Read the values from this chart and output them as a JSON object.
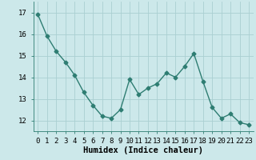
{
  "x": [
    0,
    1,
    2,
    3,
    4,
    5,
    6,
    7,
    8,
    9,
    10,
    11,
    12,
    13,
    14,
    15,
    16,
    17,
    18,
    19,
    20,
    21,
    22,
    23
  ],
  "y": [
    16.9,
    15.9,
    15.2,
    14.7,
    14.1,
    13.3,
    12.7,
    12.2,
    12.1,
    12.5,
    13.9,
    13.2,
    13.5,
    13.7,
    14.2,
    14.0,
    14.5,
    15.1,
    13.8,
    12.6,
    12.1,
    12.3,
    11.9,
    11.8
  ],
  "line_color": "#2e7d72",
  "marker": "D",
  "marker_size": 2.5,
  "bg_color": "#cce8ea",
  "grid_color": "#aacfd2",
  "xlabel": "Humidex (Indice chaleur)",
  "xlim": [
    -0.5,
    23.5
  ],
  "ylim": [
    11.5,
    17.5
  ],
  "yticks": [
    12,
    13,
    14,
    15,
    16,
    17
  ],
  "xticks": [
    0,
    1,
    2,
    3,
    4,
    5,
    6,
    7,
    8,
    9,
    10,
    11,
    12,
    13,
    14,
    15,
    16,
    17,
    18,
    19,
    20,
    21,
    22,
    23
  ],
  "xlabel_fontsize": 7.5,
  "tick_fontsize": 6.5,
  "line_width": 1.0
}
